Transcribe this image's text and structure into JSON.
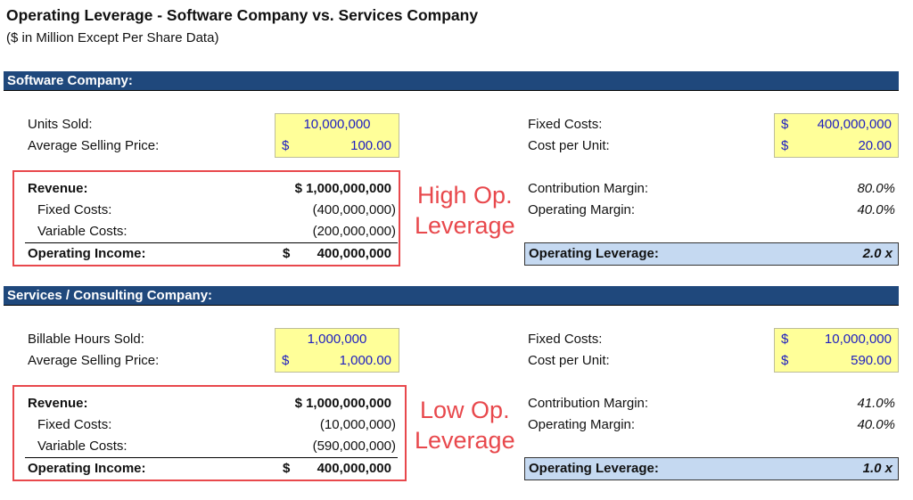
{
  "title": "Operating Leverage - Software Company vs. Services Company",
  "subtitle": "($ in Million Except Per Share Data)",
  "sections": [
    {
      "header": "Software Company:",
      "inputs_left": [
        {
          "label": "Units Sold:",
          "currency": "",
          "value": "10,000,000"
        },
        {
          "label": "Average Selling Price:",
          "currency": "$",
          "value": "100.00"
        }
      ],
      "inputs_right": [
        {
          "label": "Fixed Costs:",
          "currency": "$",
          "value": "400,000,000"
        },
        {
          "label": "Cost per Unit:",
          "currency": "$",
          "value": "20.00"
        }
      ],
      "income": {
        "revenue_label": "Revenue:",
        "revenue": "$ 1,000,000,000",
        "fixed_label": "Fixed Costs:",
        "fixed": "(400,000,000)",
        "variable_label": "Variable Costs:",
        "variable": "(200,000,000)",
        "oi_label": "Operating Income:",
        "oi_currency": "$",
        "oi": "400,000,000"
      },
      "annotation": [
        "High Op.",
        "Leverage"
      ],
      "margins": [
        {
          "label": "Contribution Margin:",
          "value": "80.0%"
        },
        {
          "label": "Operating Margin:",
          "value": "40.0%"
        }
      ],
      "leverage": {
        "label": "Operating Leverage:",
        "value": "2.0 x"
      }
    },
    {
      "header": "Services / Consulting Company:",
      "inputs_left": [
        {
          "label": "Billable Hours Sold:",
          "currency": "",
          "value": "1,000,000"
        },
        {
          "label": "Average Selling Price:",
          "currency": "$",
          "value": "1,000.00"
        }
      ],
      "inputs_right": [
        {
          "label": "Fixed Costs:",
          "currency": "$",
          "value": "10,000,000"
        },
        {
          "label": "Cost per Unit:",
          "currency": "$",
          "value": "590.00"
        }
      ],
      "income": {
        "revenue_label": "Revenue:",
        "revenue": "$ 1,000,000,000",
        "fixed_label": "Fixed Costs:",
        "fixed": "(10,000,000)",
        "variable_label": "Variable Costs:",
        "variable": "(590,000,000)",
        "oi_label": "Operating Income:",
        "oi_currency": "$",
        "oi": "400,000,000"
      },
      "annotation": [
        "Low Op.",
        "Leverage"
      ],
      "margins": [
        {
          "label": "Contribution Margin:",
          "value": "41.0%"
        },
        {
          "label": "Operating Margin:",
          "value": "40.0%"
        }
      ],
      "leverage": {
        "label": "Operating Leverage:",
        "value": "1.0 x"
      }
    }
  ],
  "colors": {
    "header_bar": "#1f487c",
    "input_fill": "#ffff99",
    "input_text": "#2020c0",
    "annotation": "#e8484c",
    "leverage_fill": "#c5d9f1"
  }
}
